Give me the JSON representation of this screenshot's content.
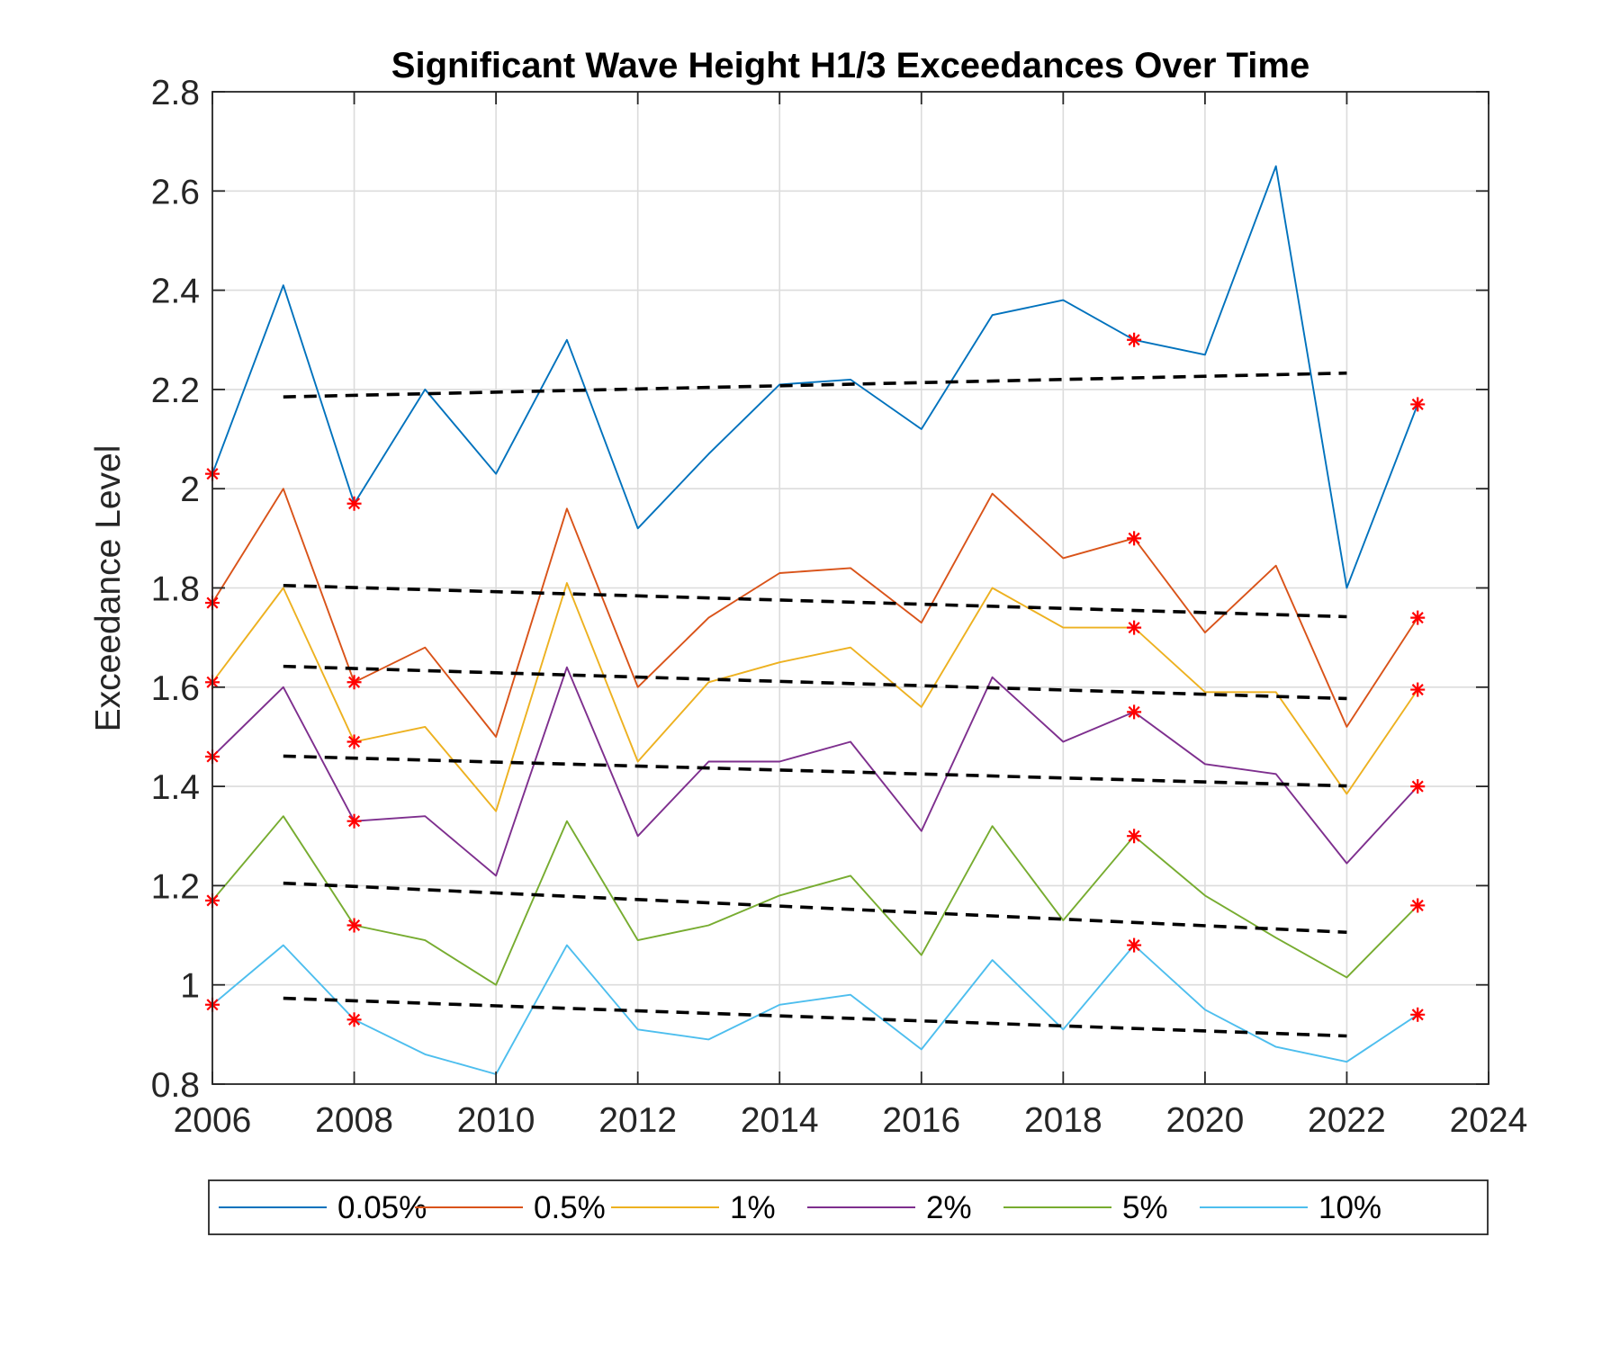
{
  "chart_data": {
    "type": "line",
    "title": "Significant Wave Height H1/3 Exceedances Over Time",
    "xlabel": "",
    "ylabel": "Exceedance Level",
    "xlim": [
      2006,
      2024
    ],
    "ylim": [
      0.8,
      2.8
    ],
    "x_ticks": [
      "2006",
      "2008",
      "2010",
      "2012",
      "2014",
      "2016",
      "2018",
      "2020",
      "2022",
      "2024"
    ],
    "y_ticks": [
      "0.8",
      "1",
      "1.2",
      "1.4",
      "1.6",
      "1.8",
      "2",
      "2.2",
      "2.4",
      "2.6",
      "2.8"
    ],
    "grid": true,
    "legend_position": "bottom-outside",
    "x": [
      2006,
      2007,
      2008,
      2009,
      2010,
      2011,
      2012,
      2013,
      2014,
      2015,
      2016,
      2017,
      2018,
      2019,
      2020,
      2021,
      2022,
      2023
    ],
    "series": [
      {
        "name": "0.05%",
        "color": "#0072BD",
        "values": [
          2.03,
          2.41,
          1.97,
          2.2,
          2.03,
          2.3,
          1.92,
          2.07,
          2.21,
          2.22,
          2.12,
          2.35,
          2.38,
          2.3,
          2.27,
          2.65,
          1.8,
          2.17
        ]
      },
      {
        "name": "0.5%",
        "color": "#D95319",
        "values": [
          1.77,
          2.0,
          1.61,
          1.68,
          1.5,
          1.96,
          1.6,
          1.74,
          1.83,
          1.84,
          1.73,
          1.99,
          1.86,
          1.9,
          1.71,
          1.845,
          1.52,
          1.74
        ]
      },
      {
        "name": "1%",
        "color": "#EDB120",
        "values": [
          1.61,
          1.8,
          1.49,
          1.52,
          1.35,
          1.81,
          1.45,
          1.61,
          1.65,
          1.68,
          1.56,
          1.8,
          1.72,
          1.72,
          1.59,
          1.59,
          1.385,
          1.595
        ]
      },
      {
        "name": "2%",
        "color": "#7E2F8E",
        "values": [
          1.46,
          1.6,
          1.33,
          1.34,
          1.22,
          1.64,
          1.3,
          1.45,
          1.45,
          1.49,
          1.31,
          1.62,
          1.49,
          1.55,
          1.445,
          1.425,
          1.245,
          1.4
        ]
      },
      {
        "name": "5%",
        "color": "#77AC30",
        "values": [
          1.17,
          1.34,
          1.12,
          1.09,
          1.0,
          1.33,
          1.09,
          1.12,
          1.18,
          1.22,
          1.06,
          1.32,
          1.13,
          1.3,
          1.18,
          1.095,
          1.015,
          1.16
        ]
      },
      {
        "name": "10%",
        "color": "#4DBEEE",
        "values": [
          0.96,
          1.08,
          0.93,
          0.86,
          0.82,
          1.08,
          0.91,
          0.89,
          0.96,
          0.98,
          0.87,
          1.05,
          0.91,
          1.08,
          0.95,
          0.875,
          0.845,
          0.94
        ]
      }
    ],
    "trend_lines": {
      "color": "#000000",
      "style": "dashed",
      "lines": [
        {
          "x": [
            2007,
            2022
          ],
          "y": [
            2.185,
            2.233
          ]
        },
        {
          "x": [
            2007,
            2022
          ],
          "y": [
            1.805,
            1.742
          ]
        },
        {
          "x": [
            2007,
            2022
          ],
          "y": [
            1.642,
            1.577
          ]
        },
        {
          "x": [
            2007,
            2022
          ],
          "y": [
            1.461,
            1.401
          ]
        },
        {
          "x": [
            2007,
            2022
          ],
          "y": [
            1.205,
            1.106
          ]
        },
        {
          "x": [
            2007,
            2022
          ],
          "y": [
            0.973,
            0.897
          ]
        }
      ]
    },
    "markers": {
      "symbol": "*",
      "color": "#FF0000",
      "points": [
        {
          "x": 2006,
          "y": 2.03
        },
        {
          "x": 2006,
          "y": 1.77
        },
        {
          "x": 2006,
          "y": 1.61
        },
        {
          "x": 2006,
          "y": 1.46
        },
        {
          "x": 2006,
          "y": 1.17
        },
        {
          "x": 2006,
          "y": 0.96
        },
        {
          "x": 2008,
          "y": 1.97
        },
        {
          "x": 2008,
          "y": 1.61
        },
        {
          "x": 2008,
          "y": 1.49
        },
        {
          "x": 2008,
          "y": 1.33
        },
        {
          "x": 2008,
          "y": 1.12
        },
        {
          "x": 2008,
          "y": 0.93
        },
        {
          "x": 2019,
          "y": 2.3
        },
        {
          "x": 2019,
          "y": 1.9
        },
        {
          "x": 2019,
          "y": 1.72
        },
        {
          "x": 2019,
          "y": 1.55
        },
        {
          "x": 2019,
          "y": 1.3
        },
        {
          "x": 2019,
          "y": 1.08
        },
        {
          "x": 2023,
          "y": 2.17
        },
        {
          "x": 2023,
          "y": 1.74
        },
        {
          "x": 2023,
          "y": 1.595
        },
        {
          "x": 2023,
          "y": 1.4
        },
        {
          "x": 2023,
          "y": 1.16
        },
        {
          "x": 2023,
          "y": 0.94
        }
      ]
    }
  }
}
